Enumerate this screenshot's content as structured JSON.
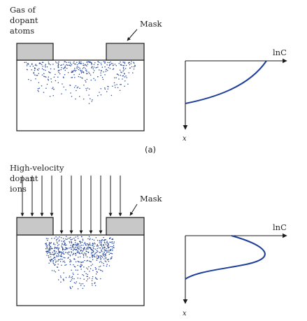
{
  "panel_a": {
    "gas_label": [
      "Gas of",
      "dopant",
      "atoms"
    ],
    "mask_label": "Mask",
    "axis_y_label": "lnC",
    "axis_x_label": "x",
    "caption": "(a)"
  },
  "panel_b": {
    "ions_label": [
      "High-velocity",
      "dopant",
      "ions"
    ],
    "mask_label": "Mask",
    "axis_y_label": "lnC",
    "axis_x_label": "x"
  },
  "colors": {
    "dopant": "#2a4a9a",
    "mask_fill": "#c8c8c8",
    "outline": "#1a1a1a",
    "curve": "#1f3f9a"
  }
}
